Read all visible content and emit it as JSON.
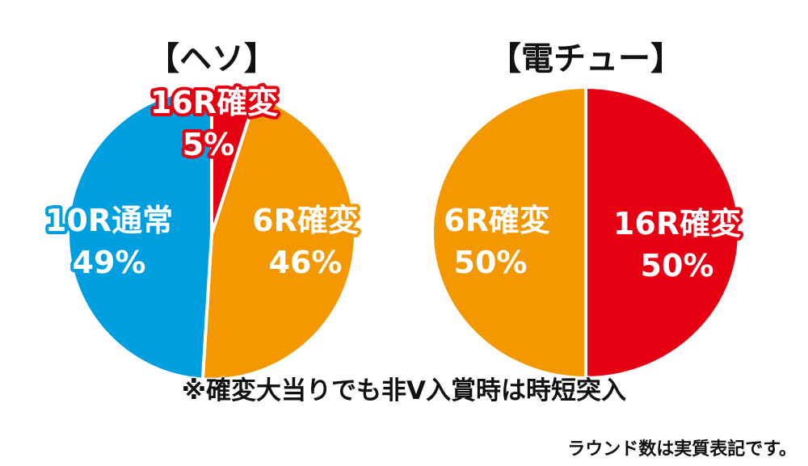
{
  "chart_data": [
    {
      "type": "pie",
      "title": "【ヘソ】",
      "slices": [
        {
          "label": "16R確変",
          "pct_text": "5%",
          "value": 5,
          "color": "#e60012"
        },
        {
          "label": "6R確変",
          "pct_text": "46%",
          "value": 46,
          "color": "#f39800"
        },
        {
          "label": "10R通常",
          "pct_text": "49%",
          "value": 49,
          "color": "#00a0e0"
        }
      ]
    },
    {
      "type": "pie",
      "title": "【電チュー】",
      "slices": [
        {
          "label": "16R確変",
          "pct_text": "50%",
          "value": 50,
          "color": "#e60012"
        },
        {
          "label": "6R確変",
          "pct_text": "50%",
          "value": 50,
          "color": "#f39800"
        }
      ]
    }
  ],
  "footnote": "※確変大当りでも非V入賞時は時短突入",
  "source_note": "ラウンド数は実質表記です。"
}
